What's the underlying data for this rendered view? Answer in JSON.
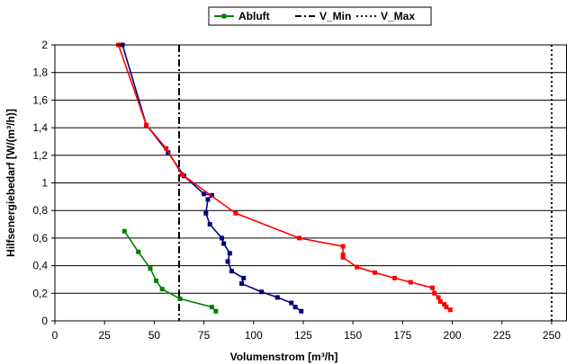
{
  "chart_data": {
    "type": "line",
    "xlabel": "Volumenstrom [m³/h]",
    "ylabel": "Hilfsenergiebedarf [W/(m³/h)]",
    "xlim": [
      0,
      260
    ],
    "ylim": [
      0,
      2
    ],
    "xticks": [
      0,
      25,
      50,
      75,
      100,
      125,
      150,
      175,
      200,
      225,
      250
    ],
    "xtick_labels": [
      "0",
      "25",
      "50",
      "75",
      "100",
      "125",
      "150",
      "175",
      "200",
      "225",
      "250"
    ],
    "yticks": [
      0,
      0.2,
      0.4,
      0.6,
      0.8,
      1,
      1.2,
      1.4,
      1.6,
      1.8,
      2
    ],
    "ytick_labels": [
      "0",
      "0,2",
      "0,4",
      "0,6",
      "0,8",
      "1",
      "1,2",
      "1,4",
      "1,6",
      "1,8",
      "2"
    ],
    "grid": "horizontal",
    "legend_position": "top",
    "legend": [
      {
        "name": "Abluft",
        "style": "line-marker",
        "color": "#008000"
      },
      {
        "name": "V_Min",
        "style": "dash-dot",
        "color": "#000000"
      },
      {
        "name": "V_Max",
        "style": "dotted",
        "color": "#000000"
      }
    ],
    "series": [
      {
        "name": "Abluft",
        "color": "#008000",
        "markers": true,
        "points": [
          [
            35,
            0.65
          ],
          [
            42,
            0.5
          ],
          [
            48,
            0.38
          ],
          [
            51,
            0.29
          ],
          [
            54,
            0.23
          ],
          [
            63,
            0.16
          ],
          [
            79,
            0.1
          ],
          [
            81,
            0.07
          ]
        ]
      },
      {
        "color": "#000080",
        "markers": true,
        "points": [
          [
            34,
            2.0
          ],
          [
            46,
            1.42
          ],
          [
            57,
            1.22
          ],
          [
            65,
            1.05
          ],
          [
            75,
            0.92
          ],
          [
            79,
            0.91
          ],
          [
            77,
            0.88
          ],
          [
            76,
            0.78
          ],
          [
            78,
            0.7
          ],
          [
            84,
            0.6
          ],
          [
            85,
            0.56
          ],
          [
            88,
            0.49
          ],
          [
            87,
            0.43
          ],
          [
            89,
            0.36
          ],
          [
            95,
            0.31
          ],
          [
            94,
            0.27
          ],
          [
            104,
            0.21
          ],
          [
            112,
            0.17
          ],
          [
            119,
            0.13
          ],
          [
            121,
            0.1
          ],
          [
            124,
            0.07
          ]
        ]
      },
      {
        "color": "#ff0000",
        "markers": true,
        "points": [
          [
            32,
            2.0
          ],
          [
            46,
            1.42
          ],
          [
            56,
            1.25
          ],
          [
            64,
            1.06
          ],
          [
            91,
            0.78
          ],
          [
            123,
            0.6
          ],
          [
            145,
            0.54
          ],
          [
            145,
            0.48
          ],
          [
            145,
            0.46
          ],
          [
            152,
            0.39
          ],
          [
            161,
            0.35
          ],
          [
            171,
            0.31
          ],
          [
            179,
            0.28
          ],
          [
            190,
            0.24
          ],
          [
            191,
            0.2
          ],
          [
            193,
            0.17
          ],
          [
            194,
            0.14
          ],
          [
            196,
            0.12
          ],
          [
            197,
            0.1
          ],
          [
            199,
            0.08
          ]
        ]
      }
    ],
    "reference_lines": [
      {
        "name": "V_Min",
        "x": 62.5,
        "style": "dash-dot",
        "color": "#000000"
      },
      {
        "name": "V_Max",
        "x": 250,
        "style": "dotted",
        "color": "#000000"
      }
    ]
  }
}
